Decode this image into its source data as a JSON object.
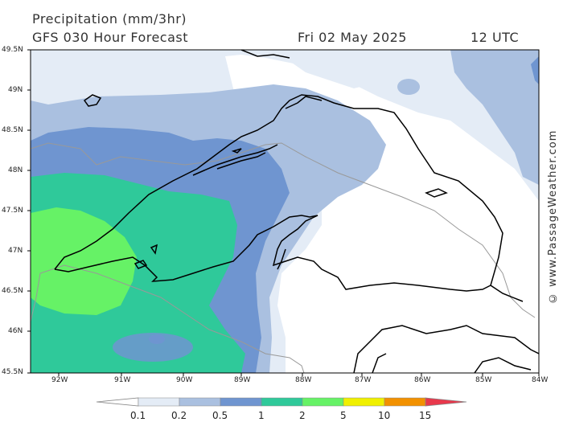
{
  "title": {
    "line1": "Precipitation (mm/3hr)",
    "line2": "GFS 030 Hour Forecast",
    "date": "Fri 02 May 2025",
    "time": "12 UTC"
  },
  "credit": "© www.PassageWeather.com",
  "axes": {
    "lat_labels": [
      "49.5N",
      "49N",
      "48.5N",
      "48N",
      "47.5N",
      "47N",
      "46.5N",
      "46N",
      "45.5N"
    ],
    "lon_labels": [
      "92W",
      "91W",
      "90W",
      "89W",
      "88W",
      "87W",
      "86W",
      "85W",
      "84W"
    ]
  },
  "legend": {
    "labels": [
      "0.1",
      "0.2",
      "0.5",
      "1",
      "2",
      "5",
      "10",
      "15"
    ],
    "colors": [
      "#e4ecf6",
      "#aac0e0",
      "#6f95d0",
      "#2fc99a",
      "#66f266",
      "#f0f000",
      "#f29100",
      "#e8384c"
    ]
  }
}
